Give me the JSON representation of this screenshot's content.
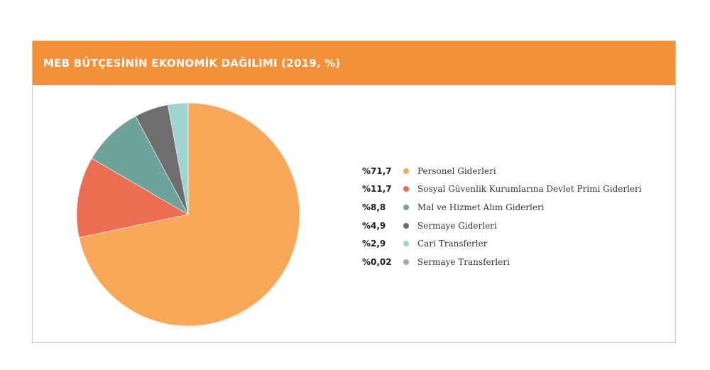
{
  "header": {
    "title": "MEB BÜTÇESİNİN EKONOMİK DAĞILIMI (2019, %)"
  },
  "colors": {
    "header_bg": "#f5903a",
    "slice_border": "#ffffff"
  },
  "chart_data": {
    "type": "pie",
    "title": "MEB BÜTÇESİNİN EKONOMİK DAĞILIMI (2019, %)",
    "legend_position": "right",
    "slices": [
      {
        "label": "Personel Giderleri",
        "value": 71.7,
        "display": "%71,7",
        "color": "#f9a85a"
      },
      {
        "label": "Sosyal Güvenlik Kurumlarına Devlet Primi Giderleri",
        "value": 11.7,
        "display": "%11,7",
        "color": "#ec6d52"
      },
      {
        "label": "Mal ve Hizmet Alım Giderleri",
        "value": 8.8,
        "display": "%8,8",
        "color": "#6ea39c"
      },
      {
        "label": "Sermaye Giderleri",
        "value": 4.9,
        "display": "%4,9",
        "color": "#6e6e6e"
      },
      {
        "label": "Cari Transferler",
        "value": 2.9,
        "display": "%2,9",
        "color": "#9fd4d0"
      },
      {
        "label": "Sermaye Transferleri",
        "value": 0.02,
        "display": "%0,02",
        "color": "#b5a491"
      }
    ]
  }
}
